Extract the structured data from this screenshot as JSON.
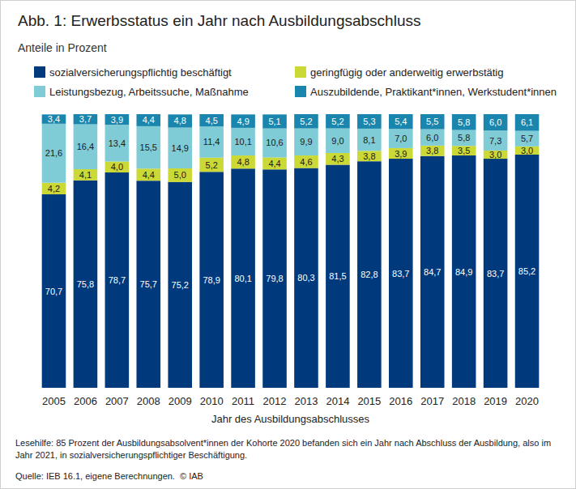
{
  "chart_data": {
    "type": "bar",
    "title": "Abb. 1: Erwerbsstatus ein Jahr nach Ausbildungsabschluss",
    "subtitle": "Anteile in Prozent",
    "x_label": "Jahr des Ausbildungsabschlusses",
    "annotations": [
      "Lesehilfe: 85 Prozent der Ausbildungsabsolvent*innen der Kohorte 2020 befanden sich ein Jahr nach Abschluss der Ausbildung, also im Jahr 2021, in sozialversicherungspflichtiger Beschäftigung.",
      "Quelle: IEB 16.1, eigene Berechnungen.  © IAB"
    ],
    "categories": [
      "2005",
      "2006",
      "2007",
      "2008",
      "2009",
      "2010",
      "2011",
      "2012",
      "2013",
      "2014",
      "2015",
      "2016",
      "2017",
      "2018",
      "2019",
      "2020"
    ],
    "series": [
      {
        "name": "sozialversicherungspflichtig beschäftigt",
        "color": "#003a7d",
        "values": [
          70.7,
          75.8,
          78.7,
          75.7,
          75.2,
          78.9,
          80.1,
          79.8,
          80.3,
          81.5,
          82.8,
          83.7,
          84.7,
          84.9,
          83.7,
          85.2
        ],
        "value_labels": [
          "70,7",
          "75,8",
          "78,7",
          "75,7",
          "75,2",
          "78,9",
          "80,1",
          "79,8",
          "80,3",
          "81,5",
          "82,8",
          "83,7",
          "84,7",
          "84,9",
          "83,7",
          "85,2"
        ]
      },
      {
        "name": "geringfügig oder anderweitig erwerbstätig",
        "color": "#cbd936",
        "values": [
          4.2,
          4.1,
          4.0,
          4.4,
          5.0,
          5.2,
          4.8,
          4.4,
          4.6,
          4.3,
          3.8,
          3.9,
          3.8,
          3.5,
          3.0,
          3.0
        ],
        "value_labels": [
          "4,2",
          "4,1",
          "4,0",
          "4,4",
          "5,0",
          "5,2",
          "4,8",
          "4,4",
          "4,6",
          "4,3",
          "3,8",
          "3,9",
          "3,8",
          "3,5",
          "3,0",
          "3,0"
        ]
      },
      {
        "name": "Leistungsbezug, Arbeitssuche, Maßnahme",
        "color": "#80ccd6",
        "values": [
          21.6,
          16.4,
          13.4,
          15.5,
          14.9,
          11.4,
          10.1,
          10.6,
          9.9,
          9.0,
          8.1,
          7.0,
          6.0,
          5.8,
          7.3,
          5.7
        ],
        "value_labels": [
          "21,6",
          "16,4",
          "13,4",
          "15,5",
          "14,9",
          "11,4",
          "10,1",
          "10,6",
          "9,9",
          "9,0",
          "8,1",
          "7,0",
          "6,0",
          "5,8",
          "7,3",
          "5,7"
        ]
      },
      {
        "name": "Auszubildende, Praktikant*innen, Werkstudent*innen",
        "color": "#1b86ad",
        "values": [
          3.4,
          3.7,
          3.9,
          4.4,
          4.8,
          4.5,
          4.9,
          5.1,
          5.2,
          5.2,
          5.3,
          5.4,
          5.5,
          5.8,
          6.0,
          6.1
        ],
        "value_labels": [
          "3,4",
          "3,7",
          "3,9",
          "4,4",
          "4,8",
          "4,5",
          "4,9",
          "5,1",
          "5,2",
          "5,2",
          "5,3",
          "5,4",
          "5,5",
          "5,8",
          "6,0",
          "6,1"
        ]
      }
    ],
    "ylim": [
      0,
      100
    ],
    "yticks": [
      0,
      25,
      50,
      75,
      100
    ],
    "stacked": true,
    "data_labels": true,
    "grid": false,
    "tick_labels": "x",
    "legend": "top-left"
  }
}
